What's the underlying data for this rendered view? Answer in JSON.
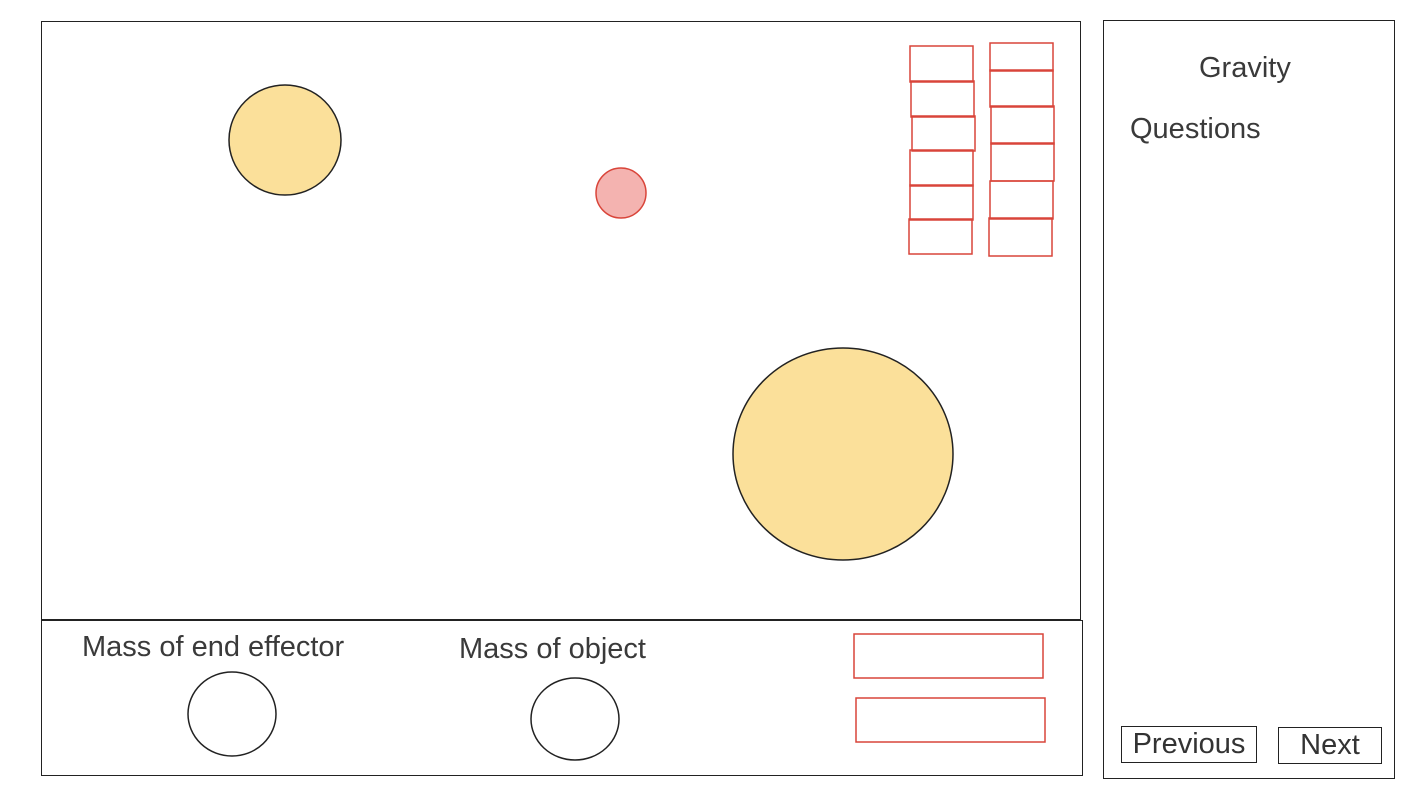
{
  "controls": {
    "mass_end_effector_label": "Mass of end effector",
    "mass_object_label": "Mass of object"
  },
  "panel": {
    "title": "Gravity",
    "questions_label": "Questions",
    "previous_label": "Previous",
    "next_label": "Next"
  },
  "colors": {
    "planet_fill": "#fbe09a",
    "object_fill": "#f4b3b0",
    "red_outline": "#d9453a",
    "outline": "#222222"
  }
}
